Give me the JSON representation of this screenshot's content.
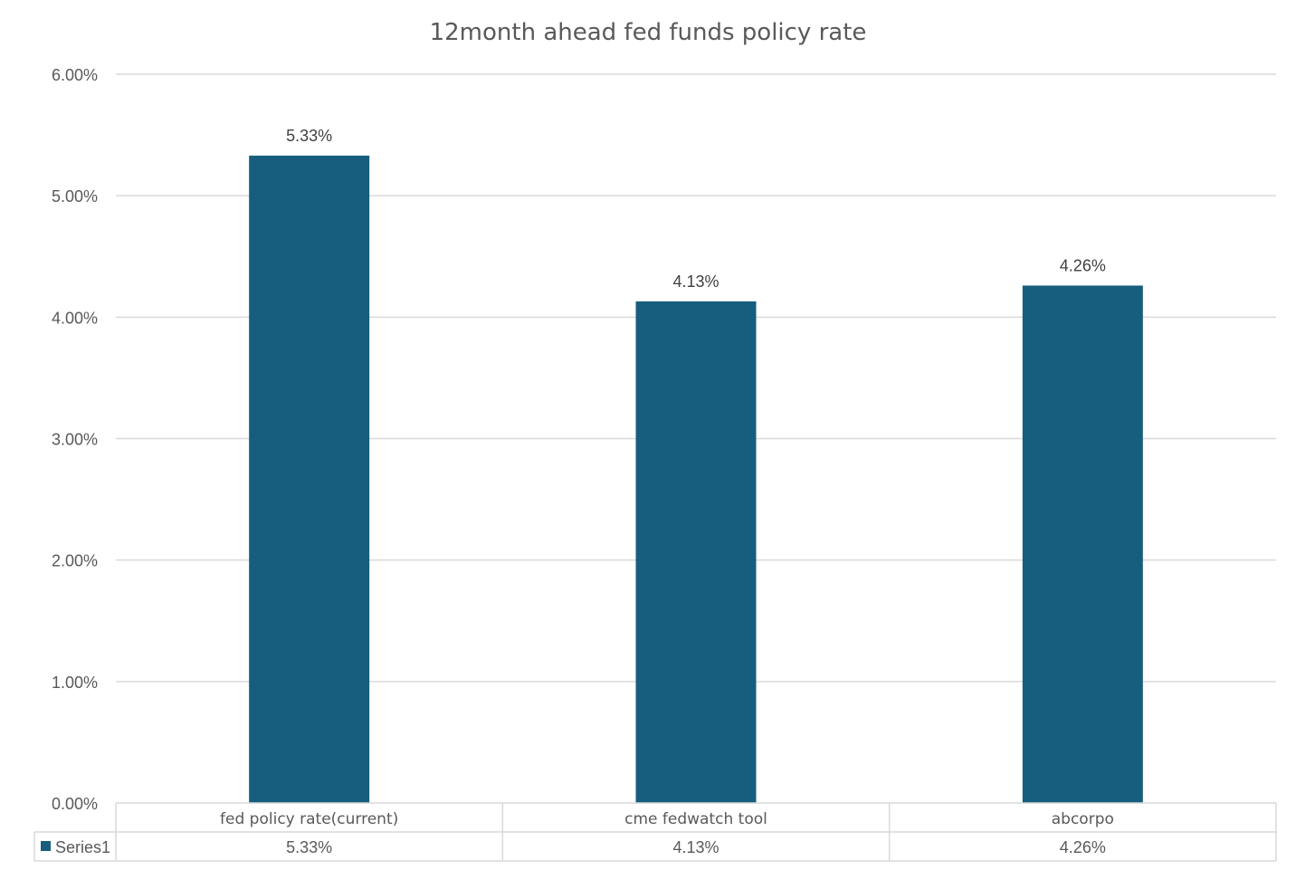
{
  "chart_data": {
    "type": "bar",
    "title": "12month ahead fed funds policy rate",
    "categories": [
      "fed policy rate(current)",
      "cme fedwatch tool",
      "abcorpo"
    ],
    "series": [
      {
        "name": "Series1",
        "values": [
          5.33,
          4.13,
          4.26
        ],
        "value_labels": [
          "5.33%",
          "4.13%",
          "4.26%"
        ],
        "color": "#175E7E"
      }
    ],
    "ylim": [
      0,
      6
    ],
    "yticks": [
      0,
      1,
      2,
      3,
      4,
      5,
      6
    ],
    "ytick_labels": [
      "0.00%",
      "1.00%",
      "2.00%",
      "3.00%",
      "4.00%",
      "5.00%",
      "6.00%"
    ],
    "xlabel": "",
    "ylabel": "",
    "grid": true,
    "legend": "data-table",
    "data_table": true
  }
}
